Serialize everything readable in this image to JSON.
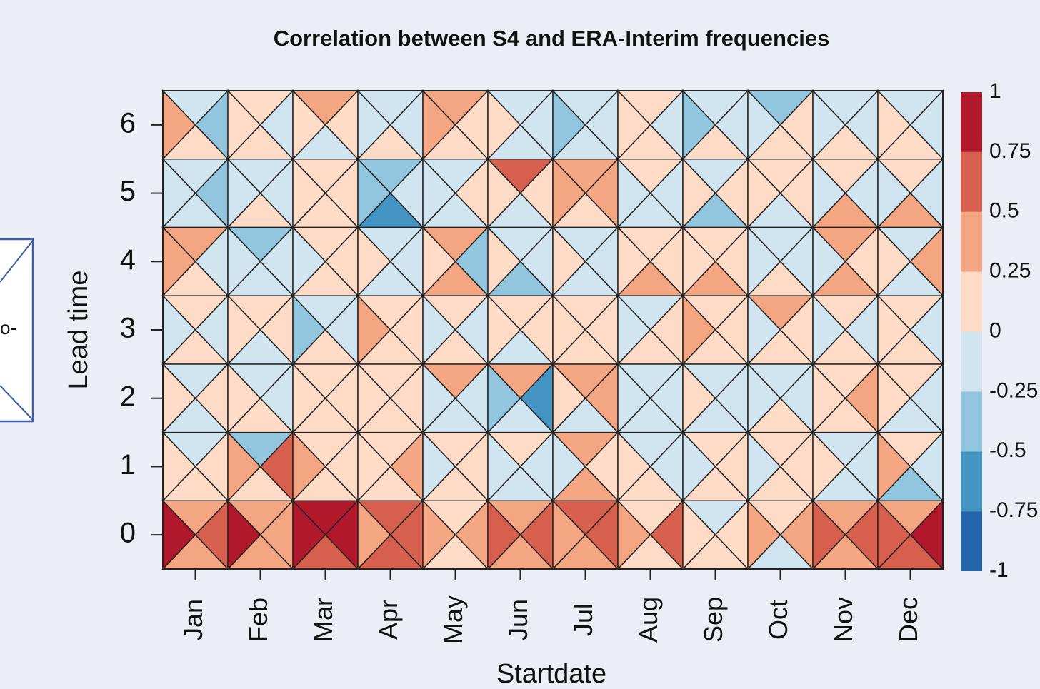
{
  "chart_data": {
    "type": "triangle-heatmap",
    "title": "Correlation between S4 and ERA-Interim frequencies",
    "x_label": "Startdate",
    "y_label": "Lead time",
    "categories": [
      "Jan",
      "Feb",
      "Mar",
      "Apr",
      "May",
      "Jun",
      "Jul",
      "Aug",
      "Sep",
      "Oct",
      "Nov",
      "Dec"
    ],
    "ylim": [
      -0.5,
      6.5
    ],
    "yticks": [
      0,
      1,
      2,
      3,
      4,
      5,
      6
    ],
    "color_ticks": [
      -1,
      -0.75,
      -0.5,
      -0.25,
      0,
      0.25,
      0.5,
      0.75,
      1
    ],
    "colors": [
      "#2166ac",
      "#4393c3",
      "#92c5de",
      "#d1e5f0",
      "#fddbc7",
      "#f4a582",
      "#d6604d",
      "#b2182b"
    ],
    "values": [
      [
        [
          0.4,
          0.6,
          0.4,
          0.9
        ],
        [
          0.4,
          0.4,
          0.4,
          0.9
        ],
        [
          0.9,
          0.9,
          0.6,
          0.9
        ],
        [
          0.6,
          0.6,
          0.6,
          0.4
        ],
        [
          0.1,
          0.4,
          0.1,
          0.4
        ],
        [
          0.4,
          0.6,
          0.4,
          0.6
        ],
        [
          0.6,
          0.6,
          0.4,
          0.4
        ],
        [
          0.1,
          0.6,
          0.1,
          0.4
        ],
        [
          -0.1,
          0.1,
          0.1,
          0.1
        ],
        [
          0.1,
          0.4,
          -0.1,
          0.4
        ],
        [
          0.4,
          0.6,
          0.4,
          0.6
        ],
        [
          0.4,
          0.9,
          0.6,
          0.6
        ]
      ],
      [
        [
          -0.1,
          0.1,
          0.1,
          0.1
        ],
        [
          -0.4,
          0.6,
          0.1,
          0.4
        ],
        [
          0.1,
          0.1,
          0.1,
          0.4
        ],
        [
          0.1,
          0.4,
          0.1,
          0.1
        ],
        [
          0.1,
          0.1,
          0.1,
          -0.1
        ],
        [
          0.1,
          -0.1,
          -0.1,
          -0.1
        ],
        [
          0.4,
          0.1,
          0.4,
          -0.1
        ],
        [
          -0.1,
          -0.1,
          0.1,
          0.1
        ],
        [
          0.1,
          0.1,
          0.1,
          -0.1
        ],
        [
          0.1,
          0.1,
          0.1,
          -0.1
        ],
        [
          -0.1,
          -0.1,
          -0.1,
          0.1
        ],
        [
          0.1,
          -0.1,
          -0.4,
          0.4
        ]
      ],
      [
        [
          -0.1,
          0.1,
          -0.1,
          0.1
        ],
        [
          -0.1,
          -0.1,
          0.1,
          0.1
        ],
        [
          0.1,
          0.1,
          0.1,
          0.1
        ],
        [
          0.1,
          0.1,
          0.1,
          0.1
        ],
        [
          0.4,
          -0.1,
          -0.1,
          -0.1
        ],
        [
          0.4,
          -0.6,
          -0.1,
          -0.4
        ],
        [
          0.4,
          0.4,
          -0.1,
          0.1
        ],
        [
          -0.1,
          -0.1,
          -0.1,
          -0.1
        ],
        [
          -0.1,
          -0.1,
          -0.1,
          0.1
        ],
        [
          -0.1,
          -0.1,
          0.1,
          -0.1
        ],
        [
          0.1,
          0.4,
          0.1,
          0.1
        ],
        [
          0.1,
          -0.1,
          -0.1,
          0.1
        ]
      ],
      [
        [
          0.1,
          -0.1,
          0.1,
          -0.1
        ],
        [
          0.1,
          0.1,
          -0.1,
          0.1
        ],
        [
          -0.1,
          -0.1,
          0.1,
          -0.4
        ],
        [
          0.1,
          0.1,
          0.1,
          0.4
        ],
        [
          0.1,
          -0.1,
          0.1,
          -0.1
        ],
        [
          0.1,
          0.1,
          -0.1,
          0.1
        ],
        [
          0.1,
          0.1,
          0.1,
          0.1
        ],
        [
          -0.1,
          0.1,
          0.1,
          -0.1
        ],
        [
          0.1,
          0.1,
          0.1,
          0.4
        ],
        [
          0.4,
          0.1,
          0.1,
          -0.1
        ],
        [
          0.1,
          -0.1,
          0.1,
          -0.1
        ],
        [
          0.1,
          -0.1,
          0.1,
          0.1
        ]
      ],
      [
        [
          0.4,
          -0.1,
          0.1,
          0.4
        ],
        [
          -0.4,
          -0.1,
          -0.1,
          -0.1
        ],
        [
          0.1,
          0.1,
          0.1,
          -0.1
        ],
        [
          -0.1,
          -0.1,
          -0.1,
          0.1
        ],
        [
          0.4,
          -0.4,
          0.4,
          0.1
        ],
        [
          -0.1,
          -0.1,
          -0.4,
          0.1
        ],
        [
          -0.1,
          -0.1,
          -0.1,
          0.1
        ],
        [
          0.1,
          0.1,
          0.4,
          0.1
        ],
        [
          0.1,
          0.1,
          0.4,
          0.1
        ],
        [
          -0.1,
          -0.1,
          0.1,
          -0.1
        ],
        [
          0.4,
          0.1,
          0.4,
          -0.1
        ],
        [
          -0.1,
          0.4,
          -0.1,
          0.1
        ]
      ],
      [
        [
          -0.1,
          -0.4,
          -0.1,
          -0.1
        ],
        [
          -0.1,
          -0.1,
          0.1,
          -0.1
        ],
        [
          0.1,
          0.1,
          0.1,
          0.1
        ],
        [
          -0.4,
          -0.1,
          -0.6,
          -0.4
        ],
        [
          -0.1,
          0.1,
          -0.1,
          -0.1
        ],
        [
          0.6,
          0.1,
          -0.1,
          0.1
        ],
        [
          0.4,
          0.4,
          0.1,
          0.4
        ],
        [
          0.1,
          -0.1,
          -0.1,
          -0.1
        ],
        [
          -0.1,
          0.1,
          -0.4,
          0.1
        ],
        [
          0.1,
          0.1,
          -0.1,
          0.1
        ],
        [
          0.1,
          -0.1,
          0.4,
          -0.1
        ],
        [
          0.1,
          -0.1,
          0.4,
          -0.1
        ]
      ],
      [
        [
          -0.1,
          -0.4,
          0.1,
          0.4
        ],
        [
          0.1,
          -0.1,
          0.1,
          0.1
        ],
        [
          0.4,
          0.1,
          -0.1,
          0.1
        ],
        [
          -0.1,
          -0.1,
          0.1,
          -0.1
        ],
        [
          0.4,
          0.1,
          0.1,
          0.4
        ],
        [
          -0.1,
          -0.1,
          -0.1,
          0.1
        ],
        [
          -0.1,
          -0.1,
          -0.1,
          -0.4
        ],
        [
          0.1,
          -0.1,
          0.1,
          0.1
        ],
        [
          -0.1,
          -0.1,
          0.1,
          -0.4
        ],
        [
          -0.4,
          0.1,
          0.1,
          -0.1
        ],
        [
          -0.1,
          -0.1,
          0.1,
          -0.1
        ],
        [
          -0.1,
          -0.1,
          0.1,
          0.1
        ]
      ]
    ]
  },
  "side_fragment": {
    "text": "o-"
  }
}
